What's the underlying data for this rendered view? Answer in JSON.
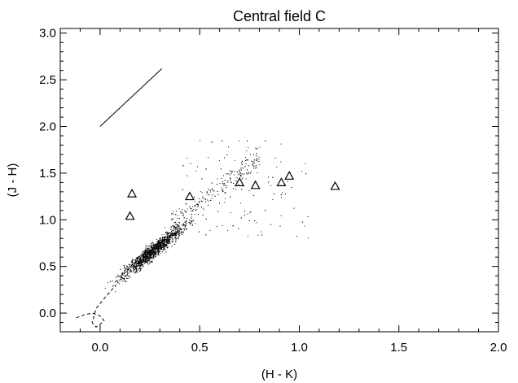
{
  "chart_data": {
    "type": "scatter",
    "title": "Central field C",
    "xlabel": "(H - K)",
    "ylabel": "(J - H)",
    "xlim": [
      -0.2,
      2.0
    ],
    "ylim": [
      -0.2,
      3.05
    ],
    "x_ticks": [
      {
        "value": 0.0,
        "label": "0.0"
      },
      {
        "value": 0.5,
        "label": "0.5"
      },
      {
        "value": 1.0,
        "label": "1.0"
      },
      {
        "value": 1.5,
        "label": "1.5"
      },
      {
        "value": 2.0,
        "label": "2.0"
      }
    ],
    "y_ticks": [
      {
        "value": 0.0,
        "label": "0.0"
      },
      {
        "value": 0.5,
        "label": "0.5"
      },
      {
        "value": 1.0,
        "label": "1.0"
      },
      {
        "value": 1.5,
        "label": "1.5"
      },
      {
        "value": 2.0,
        "label": "2.0"
      },
      {
        "value": 2.5,
        "label": "2.5"
      },
      {
        "value": 3.0,
        "label": "3.0"
      }
    ],
    "x_minor_step": 0.1,
    "y_minor_step": 0.1,
    "grid": false,
    "legend": "none",
    "dot_cloud": {
      "approx_count": 2500,
      "center": [
        0.27,
        0.68
      ],
      "trend_slope": 1.7,
      "x_range": [
        -0.05,
        0.85
      ],
      "tail_x_range": [
        0.4,
        1.05
      ]
    },
    "triangles": {
      "marker": "triangle-open",
      "x": [
        0.16,
        0.15,
        0.45,
        0.7,
        0.78,
        0.91,
        0.95,
        1.18
      ],
      "y": [
        1.28,
        1.04,
        1.25,
        1.4,
        1.37,
        1.4,
        1.47,
        1.36
      ]
    },
    "reddening_vector": {
      "style": "solid",
      "x": [
        0.0,
        0.31
      ],
      "y": [
        2.0,
        2.62
      ]
    },
    "dashed_curve": {
      "style": "dashed",
      "x": [
        -0.12,
        -0.08,
        -0.04,
        0.0,
        0.02,
        0.0,
        -0.02,
        -0.04,
        -0.02,
        0.03,
        0.08
      ],
      "y": [
        -0.05,
        -0.02,
        0.0,
        -0.03,
        -0.08,
        -0.12,
        -0.15,
        -0.1,
        0.05,
        0.18,
        0.3
      ]
    }
  }
}
